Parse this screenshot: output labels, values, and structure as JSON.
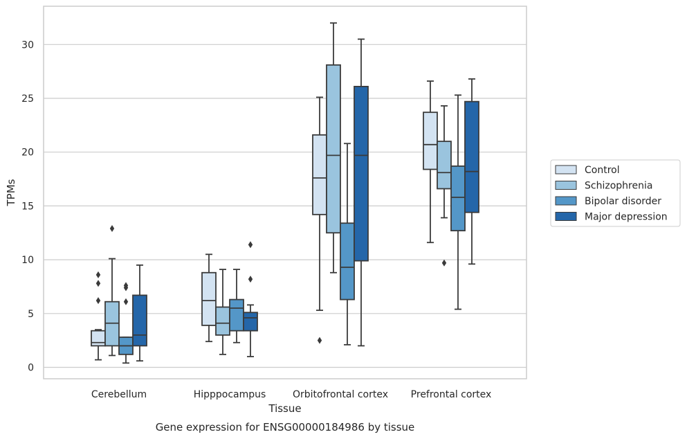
{
  "chart_data": {
    "type": "boxplot",
    "caption": "Gene expression for ENSG00000184986 by tissue",
    "xlabel": "Tissue",
    "ylabel": "TPMs",
    "ylim": [
      -1.2,
      33.0
    ],
    "yticks": [
      0,
      5,
      10,
      15,
      20,
      25,
      30
    ],
    "grid": "horizontal",
    "legend_position": "right",
    "categories": [
      "Cerebellum",
      "Hipppocampus",
      "Orbitofrontal cortex",
      "Prefrontal cortex"
    ],
    "series": [
      {
        "name": "Control",
        "color": "#d3e3f2",
        "boxes": [
          {
            "whislo": 0.7,
            "q1": 2.0,
            "med": 2.3,
            "q3": 3.4,
            "whishi": 3.5,
            "fliers": [
              6.2,
              7.8,
              8.6
            ]
          },
          {
            "whislo": 2.4,
            "q1": 3.9,
            "med": 6.2,
            "q3": 8.8,
            "whishi": 10.5,
            "fliers": []
          },
          {
            "whislo": 5.3,
            "q1": 14.2,
            "med": 17.6,
            "q3": 21.6,
            "whishi": 25.1,
            "fliers": [
              2.5
            ]
          },
          {
            "whislo": 11.6,
            "q1": 18.4,
            "med": 20.7,
            "q3": 23.7,
            "whishi": 26.6,
            "fliers": []
          }
        ]
      },
      {
        "name": "Schizophrenia",
        "color": "#9ac4de",
        "boxes": [
          {
            "whislo": 1.1,
            "q1": 2.0,
            "med": 4.1,
            "q3": 6.1,
            "whishi": 10.1,
            "fliers": [
              12.9
            ]
          },
          {
            "whislo": 1.2,
            "q1": 3.0,
            "med": 4.1,
            "q3": 5.6,
            "whishi": 9.1,
            "fliers": []
          },
          {
            "whislo": 8.8,
            "q1": 12.5,
            "med": 19.7,
            "q3": 28.1,
            "whishi": 32.0,
            "fliers": []
          },
          {
            "whislo": 13.9,
            "q1": 16.6,
            "med": 18.1,
            "q3": 21.0,
            "whishi": 24.3,
            "fliers": [
              9.7
            ]
          }
        ]
      },
      {
        "name": "Bipolar disorder",
        "color": "#5497c8",
        "boxes": [
          {
            "whislo": 0.4,
            "q1": 1.2,
            "med": 2.0,
            "q3": 2.8,
            "whishi": 2.8,
            "fliers": [
              6.1,
              7.4,
              7.6
            ]
          },
          {
            "whislo": 2.3,
            "q1": 3.4,
            "med": 5.5,
            "q3": 6.3,
            "whishi": 9.1,
            "fliers": []
          },
          {
            "whislo": 2.1,
            "q1": 6.3,
            "med": 9.3,
            "q3": 13.4,
            "whishi": 20.8,
            "fliers": []
          },
          {
            "whislo": 5.4,
            "q1": 12.7,
            "med": 15.8,
            "q3": 18.7,
            "whishi": 25.3,
            "fliers": []
          }
        ]
      },
      {
        "name": "Major depression",
        "color": "#2466a9",
        "boxes": [
          {
            "whislo": 0.6,
            "q1": 2.0,
            "med": 3.0,
            "q3": 6.7,
            "whishi": 9.5,
            "fliers": []
          },
          {
            "whislo": 1.0,
            "q1": 3.4,
            "med": 4.6,
            "q3": 5.1,
            "whishi": 5.8,
            "fliers": [
              8.2,
              11.4
            ]
          },
          {
            "whislo": 2.0,
            "q1": 9.9,
            "med": 19.7,
            "q3": 26.1,
            "whishi": 30.5,
            "fliers": []
          },
          {
            "whislo": 9.6,
            "q1": 14.4,
            "med": 18.2,
            "q3": 24.7,
            "whishi": 26.8,
            "fliers": []
          }
        ]
      }
    ]
  }
}
